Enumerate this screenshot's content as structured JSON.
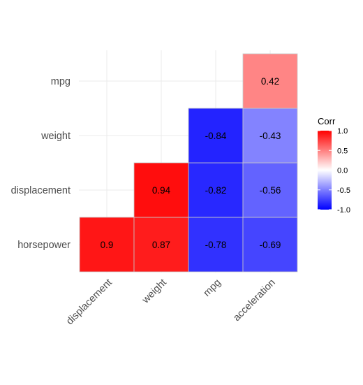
{
  "chart_data": {
    "type": "heatmap",
    "x_categories": [
      "displacement",
      "weight",
      "mpg",
      "acceleration"
    ],
    "y_categories": [
      "horsepower",
      "displacement",
      "weight",
      "mpg"
    ],
    "cells": [
      {
        "x": "displacement",
        "y": "horsepower",
        "value": 0.9,
        "label": "0.9"
      },
      {
        "x": "weight",
        "y": "horsepower",
        "value": 0.87,
        "label": "0.87"
      },
      {
        "x": "mpg",
        "y": "horsepower",
        "value": -0.78,
        "label": "-0.78"
      },
      {
        "x": "acceleration",
        "y": "horsepower",
        "value": -0.69,
        "label": "-0.69"
      },
      {
        "x": "weight",
        "y": "displacement",
        "value": 0.94,
        "label": "0.94"
      },
      {
        "x": "mpg",
        "y": "displacement",
        "value": -0.82,
        "label": "-0.82"
      },
      {
        "x": "acceleration",
        "y": "displacement",
        "value": -0.56,
        "label": "-0.56"
      },
      {
        "x": "mpg",
        "y": "weight",
        "value": -0.84,
        "label": "-0.84"
      },
      {
        "x": "acceleration",
        "y": "weight",
        "value": -0.43,
        "label": "-0.43"
      },
      {
        "x": "acceleration",
        "y": "mpg",
        "value": 0.42,
        "label": "0.42"
      }
    ],
    "legend": {
      "title": "Corr",
      "ticks": [
        {
          "value": 1.0,
          "label": "1.0"
        },
        {
          "value": 0.5,
          "label": "0.5"
        },
        {
          "value": 0.0,
          "label": "0.0"
        },
        {
          "value": -0.5,
          "label": "-0.5"
        },
        {
          "value": -1.0,
          "label": "-1.0"
        }
      ],
      "range": [
        -1,
        1
      ],
      "colors": {
        "low": "#0000ff",
        "mid": "#ffffff",
        "high": "#ff0000"
      }
    },
    "grid": true,
    "legend_position": "right"
  }
}
